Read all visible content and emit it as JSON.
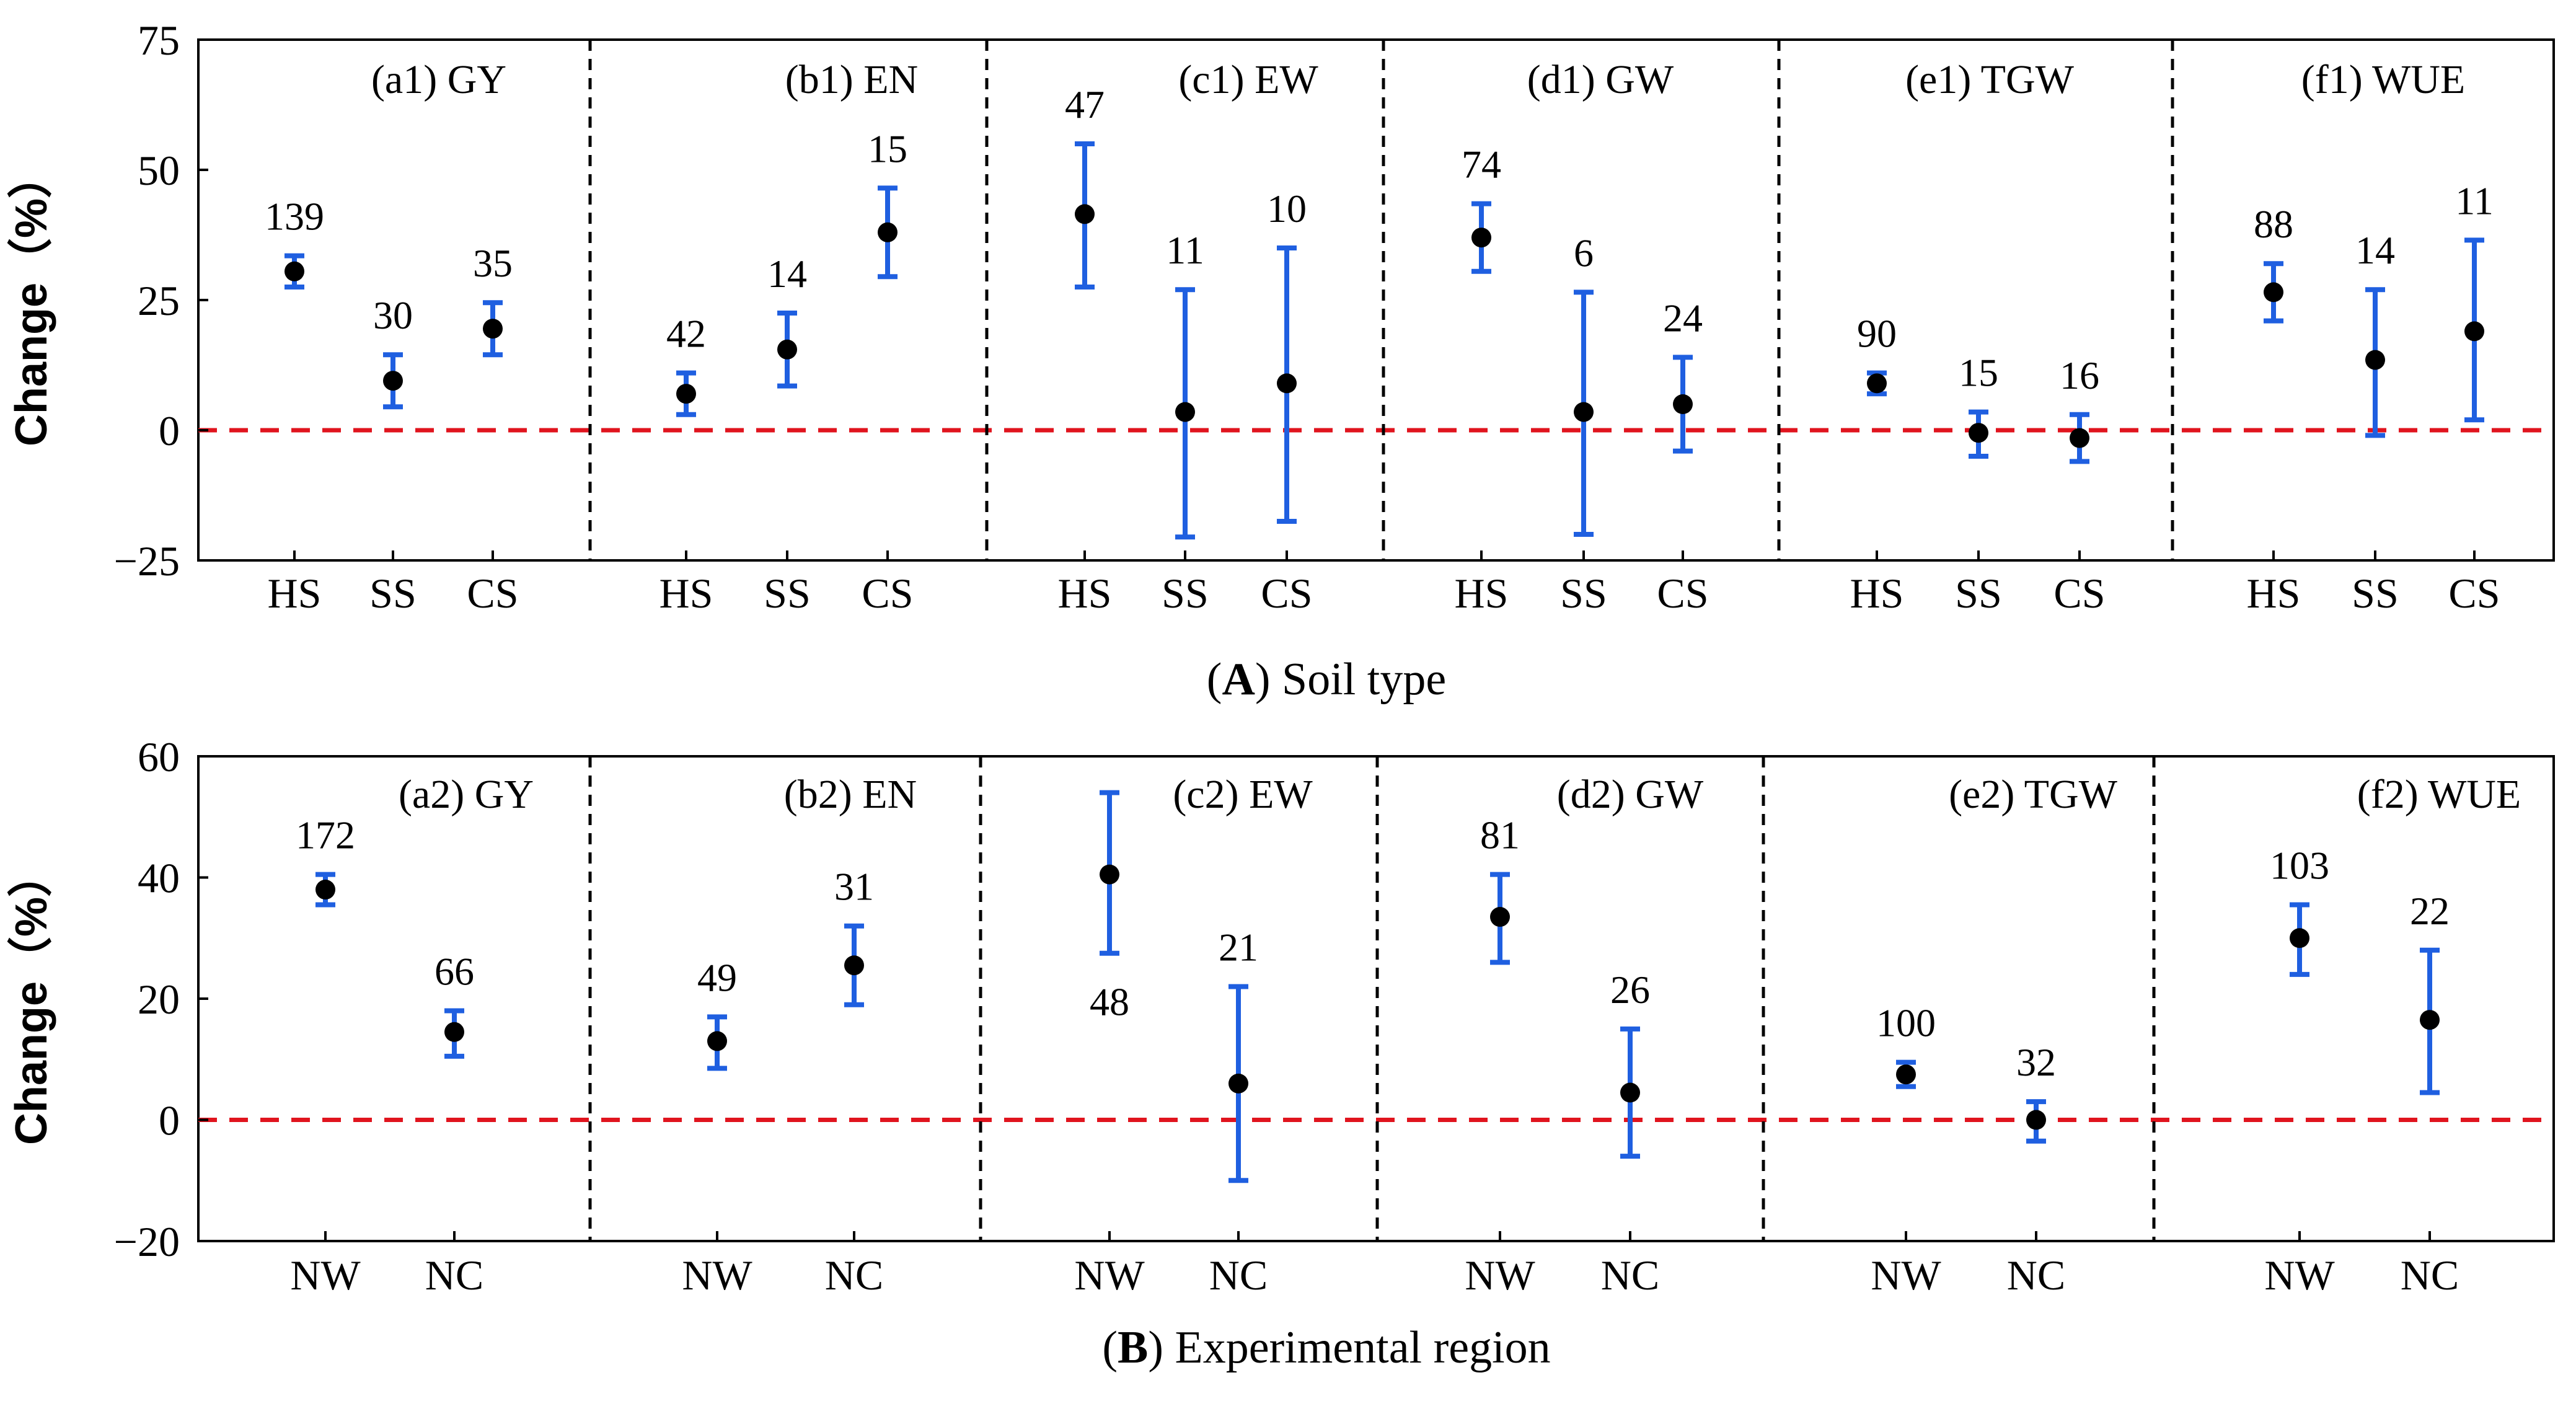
{
  "colors": {
    "errorbar": "#1f5fe0",
    "point": "#000000",
    "zero_line": "#e0141e",
    "divider": "#000000"
  },
  "chart_data": [
    {
      "type": "errorbar",
      "caption_prefix": "(",
      "caption_bold": "A",
      "caption_suffix": ") Soil type",
      "ylabel": "Change（%）",
      "ylim": [
        -25,
        75
      ],
      "yticks": [
        -25,
        0,
        25,
        50,
        75
      ],
      "ytick_labels": [
        "−25",
        "0",
        "25",
        "50",
        "75"
      ],
      "categories": [
        "HS",
        "SS",
        "CS"
      ],
      "panels": [
        {
          "label": "(a1) GY",
          "points": [
            {
              "category": "HS",
              "n": "139",
              "mean": 30.5,
              "low": 27.5,
              "high": 33.5
            },
            {
              "category": "SS",
              "n": "30",
              "mean": 9.5,
              "low": 4.5,
              "high": 14.5
            },
            {
              "category": "CS",
              "n": "35",
              "mean": 19.5,
              "low": 14.5,
              "high": 24.5
            }
          ]
        },
        {
          "label": "(b1) EN",
          "points": [
            {
              "category": "HS",
              "n": "42",
              "mean": 7,
              "low": 3,
              "high": 11
            },
            {
              "category": "SS",
              "n": "14",
              "mean": 15.5,
              "low": 8.5,
              "high": 22.5
            },
            {
              "category": "CS",
              "n": "15",
              "mean": 38,
              "low": 29.5,
              "high": 46.5
            }
          ]
        },
        {
          "label": "(c1) EW",
          "points": [
            {
              "category": "HS",
              "n": "47",
              "mean": 41.5,
              "low": 27.5,
              "high": 55
            },
            {
              "category": "SS",
              "n": "11",
              "mean": 3.5,
              "low": -20.5,
              "high": 27
            },
            {
              "category": "CS",
              "n": "10",
              "mean": 9,
              "low": -17.5,
              "high": 35
            }
          ]
        },
        {
          "label": "(d1) GW",
          "points": [
            {
              "category": "HS",
              "n": "74",
              "mean": 37,
              "low": 30.5,
              "high": 43.5
            },
            {
              "category": "SS",
              "n": "6",
              "mean": 3.5,
              "low": -20,
              "high": 26.5
            },
            {
              "category": "CS",
              "n": "24",
              "mean": 5,
              "low": -4,
              "high": 14
            }
          ]
        },
        {
          "label": "(e1) TGW",
          "points": [
            {
              "category": "HS",
              "n": "90",
              "mean": 9,
              "low": 7,
              "high": 11
            },
            {
              "category": "SS",
              "n": "15",
              "mean": -0.5,
              "low": -5,
              "high": 3.5
            },
            {
              "category": "CS",
              "n": "16",
              "mean": -1.5,
              "low": -6,
              "high": 3
            }
          ]
        },
        {
          "label": "(f1) WUE",
          "points": [
            {
              "category": "HS",
              "n": "88",
              "mean": 26.5,
              "low": 21,
              "high": 32
            },
            {
              "category": "SS",
              "n": "14",
              "mean": 13.5,
              "low": -1,
              "high": 27
            },
            {
              "category": "CS",
              "n": "11",
              "mean": 19,
              "low": 2,
              "high": 36.5
            }
          ]
        }
      ]
    },
    {
      "type": "errorbar",
      "caption_prefix": "(",
      "caption_bold": "B",
      "caption_suffix": ") Experimental region",
      "ylabel": "Change（%）",
      "ylim": [
        -20,
        60
      ],
      "yticks": [
        -20,
        0,
        20,
        40,
        60
      ],
      "ytick_labels": [
        "−20",
        "0",
        "20",
        "40",
        "60"
      ],
      "categories": [
        "NW",
        "NC"
      ],
      "panels": [
        {
          "label": "(a2) GY",
          "points": [
            {
              "category": "NW",
              "n": "172",
              "mean": 38,
              "low": 35.5,
              "high": 40.5
            },
            {
              "category": "NC",
              "n": "66",
              "mean": 14.5,
              "low": 10.5,
              "high": 18
            }
          ]
        },
        {
          "label": "(b2) EN",
          "points": [
            {
              "category": "NW",
              "n": "49",
              "mean": 13,
              "low": 8.5,
              "high": 17
            },
            {
              "category": "NC",
              "n": "31",
              "mean": 25.5,
              "low": 19,
              "high": 32
            }
          ]
        },
        {
          "label": "(c2) EW",
          "points": [
            {
              "category": "NW",
              "n": "48",
              "mean": 40.5,
              "low": 27.5,
              "high": 54
            },
            {
              "category": "NC",
              "n": "21",
              "mean": 6,
              "low": -10,
              "high": 22
            }
          ]
        },
        {
          "label": "(d2) GW",
          "points": [
            {
              "category": "NW",
              "n": "81",
              "mean": 33.5,
              "low": 26,
              "high": 40.5
            },
            {
              "category": "NC",
              "n": "26",
              "mean": 4.5,
              "low": -6,
              "high": 15
            }
          ]
        },
        {
          "label": "(e2) TGW",
          "points": [
            {
              "category": "NW",
              "n": "100",
              "mean": 7.5,
              "low": 5.5,
              "high": 9.5
            },
            {
              "category": "NC",
              "n": "32",
              "mean": 0,
              "low": -3.5,
              "high": 3
            }
          ]
        },
        {
          "label": "(f2) WUE",
          "points": [
            {
              "category": "NW",
              "n": "103",
              "mean": 30,
              "low": 24,
              "high": 35.5
            },
            {
              "category": "NC",
              "n": "22",
              "mean": 16.5,
              "low": 4.5,
              "high": 28
            }
          ]
        }
      ]
    }
  ]
}
